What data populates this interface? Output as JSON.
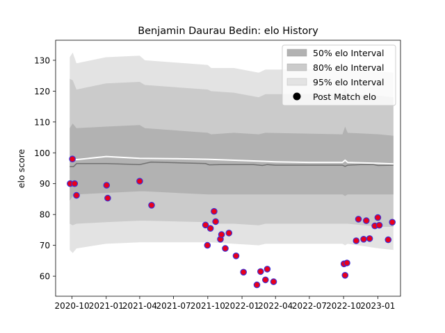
{
  "chart_data": {
    "type": "line",
    "title": "Benjamin Daurau Bedin: elo History",
    "xlabel": "",
    "ylabel": "elo score",
    "x_tick_labels": [
      "2020-10",
      "2021-01",
      "2021-04",
      "2021-07",
      "2021-10",
      "2022-01",
      "2022-04",
      "2022-07",
      "2022-10",
      "2023-01"
    ],
    "x_ticks": [
      "2020-10-01",
      "2021-01-01",
      "2021-04-01",
      "2021-07-01",
      "2021-10-01",
      "2022-01-01",
      "2022-04-01",
      "2022-07-01",
      "2022-10-01",
      "2023-01-01"
    ],
    "y_ticks": [
      60,
      70,
      80,
      90,
      100,
      110,
      120,
      130
    ],
    "xlim": [
      "2020-08-18",
      "2023-03-03"
    ],
    "ylim": [
      53.5,
      136.5
    ],
    "grid": false,
    "legend_position": "top-right",
    "legend": [
      {
        "label": "50% elo Interval",
        "kind": "band"
      },
      {
        "label": "80% elo Interval",
        "kind": "band"
      },
      {
        "label": "95% elo Interval",
        "kind": "band"
      },
      {
        "label": "Post Match elo",
        "kind": "marker"
      }
    ],
    "colors": {
      "band50": "#b2b2b2",
      "band80": "#cbcbcb",
      "band95": "#e3e3e3",
      "median": "#707070",
      "mean": "#ffffff",
      "marker_face": "#e8001c",
      "marker_edge": "#3a2fd6",
      "legend_marker": "#000000"
    },
    "bands": [
      {
        "x": "2020-09-25",
        "b95": [
          68.5,
          131
        ],
        "b80": [
          77,
          124
        ],
        "b50": [
          84.5,
          108
        ]
      },
      {
        "x": "2020-10-03",
        "b95": [
          67.5,
          132.5
        ],
        "b80": [
          76.5,
          123.5
        ],
        "b50": [
          86,
          109.5
        ]
      },
      {
        "x": "2020-10-13",
        "b95": [
          69,
          129
        ],
        "b80": [
          77,
          120.5
        ],
        "b50": [
          86.5,
          108
        ]
      },
      {
        "x": "2020-12-31",
        "b95": [
          70.5,
          131
        ],
        "b80": [
          77.5,
          122.5
        ],
        "b50": [
          87,
          108.5
        ]
      },
      {
        "x": "2021-04-01",
        "b95": [
          71,
          131.5
        ],
        "b80": [
          78,
          123
        ],
        "b50": [
          87.5,
          109
        ]
      },
      {
        "x": "2021-04-15",
        "b95": [
          71,
          130
        ],
        "b80": [
          78,
          122
        ],
        "b50": [
          87.5,
          108
        ]
      },
      {
        "x": "2021-10-01",
        "b95": [
          71,
          128.5
        ],
        "b80": [
          77.5,
          120.5
        ],
        "b50": [
          86.5,
          106.5
        ]
      },
      {
        "x": "2021-10-10",
        "b95": [
          71,
          127.5
        ],
        "b80": [
          77,
          120
        ],
        "b50": [
          86.5,
          106
        ]
      },
      {
        "x": "2021-12-10",
        "b95": [
          70.5,
          127.5
        ],
        "b80": [
          77,
          119.5
        ],
        "b50": [
          86.5,
          106.5
        ]
      },
      {
        "x": "2022-02-15",
        "b95": [
          70,
          126
        ],
        "b80": [
          76.5,
          118
        ],
        "b50": [
          86.5,
          106
        ]
      },
      {
        "x": "2022-03-05",
        "b95": [
          70.5,
          127
        ],
        "b80": [
          77,
          119
        ],
        "b50": [
          86.5,
          106.5
        ]
      },
      {
        "x": "2022-09-28",
        "b95": [
          70.5,
          127
        ],
        "b80": [
          77,
          119
        ],
        "b50": [
          86.5,
          106
        ]
      },
      {
        "x": "2022-10-05",
        "b95": [
          70,
          129
        ],
        "b80": [
          77,
          121
        ],
        "b50": [
          86,
          108.5
        ]
      },
      {
        "x": "2022-10-12",
        "b95": [
          70.5,
          127
        ],
        "b80": [
          77,
          119
        ],
        "b50": [
          86.5,
          106.5
        ]
      },
      {
        "x": "2023-01-05",
        "b95": [
          69,
          126.5
        ],
        "b80": [
          76,
          118.5
        ],
        "b50": [
          86.5,
          106
        ]
      },
      {
        "x": "2023-02-12",
        "b95": [
          68.5,
          126
        ],
        "b80": [
          76,
          118
        ],
        "b50": [
          86.5,
          105.5
        ]
      }
    ],
    "series": [
      {
        "role": "median",
        "x": [
          "2020-09-25",
          "2020-10-05",
          "2020-10-13",
          "2021-01-01",
          "2021-04-01",
          "2021-05-01",
          "2021-09-25",
          "2021-10-05",
          "2021-11-01",
          "2022-02-01",
          "2022-02-25",
          "2022-03-10",
          "2022-04-01",
          "2022-09-28",
          "2022-10-05",
          "2022-10-12",
          "2022-11-15",
          "2022-12-20",
          "2023-01-01",
          "2023-02-12"
        ],
        "y": [
          95.5,
          95.5,
          96.5,
          96.5,
          96.2,
          97,
          96.5,
          96.1,
          96.2,
          96.2,
          95.9,
          96.2,
          96,
          96,
          95.6,
          96,
          96.2,
          96.2,
          95.9,
          96
        ]
      },
      {
        "role": "mean",
        "x": [
          "2020-09-25",
          "2020-10-05",
          "2020-10-13",
          "2021-01-01",
          "2021-04-01",
          "2021-07-01",
          "2021-10-01",
          "2022-01-01",
          "2022-04-01",
          "2022-07-01",
          "2022-09-28",
          "2022-10-05",
          "2022-10-12",
          "2023-01-01",
          "2023-02-12"
        ],
        "y": [
          97.8,
          98,
          97.8,
          98.8,
          98.2,
          98.1,
          97.9,
          97.5,
          97.1,
          96.9,
          96.9,
          97.6,
          96.9,
          96.6,
          96.4
        ]
      },
      {
        "name": "Post Match elo",
        "role": "points",
        "x": [
          "2020-09-26",
          "2020-10-02",
          "2020-10-08",
          "2020-10-13",
          "2021-01-02",
          "2021-01-05",
          "2021-04-01",
          "2021-05-03",
          "2021-09-25",
          "2021-09-30",
          "2021-10-08",
          "2021-10-18",
          "2021-10-22",
          "2021-11-04",
          "2021-11-07",
          "2021-11-17",
          "2021-11-27",
          "2021-12-16",
          "2022-01-05",
          "2022-02-10",
          "2022-02-20",
          "2022-03-05",
          "2022-03-10",
          "2022-03-27",
          "2022-10-02",
          "2022-10-05",
          "2022-10-10",
          "2022-11-04",
          "2022-11-10",
          "2022-11-24",
          "2022-12-01",
          "2022-12-10",
          "2022-12-24",
          "2023-01-01",
          "2023-01-05",
          "2023-01-29",
          "2023-02-09"
        ],
        "y": [
          90,
          98,
          90,
          86.2,
          89.5,
          85.3,
          90.8,
          83,
          76.6,
          70,
          75.5,
          81,
          77.7,
          72,
          73.5,
          69,
          74,
          66.6,
          61.3,
          57.2,
          61.5,
          58.8,
          62.3,
          58.2,
          64,
          60.3,
          64.3,
          71.5,
          78.5,
          72,
          78,
          72.2,
          76.3,
          79,
          76.5,
          71.8,
          77.5
        ]
      }
    ]
  }
}
